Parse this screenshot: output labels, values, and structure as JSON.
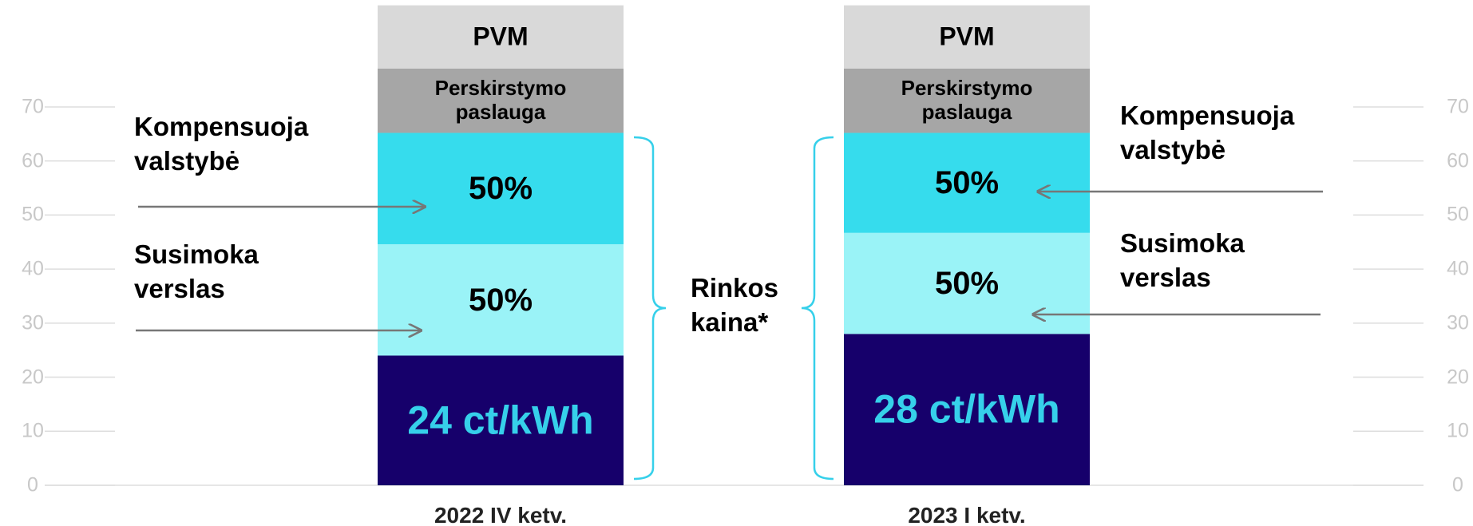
{
  "chart_data": {
    "type": "stacked_bar",
    "categories": [
      "2022 IV ketv.",
      "2023 I ketv."
    ],
    "series": [
      {
        "color": "#16006b",
        "values": [
          24,
          28
        ],
        "value_labels": [
          "24 ct/kWh",
          "28 ct/kWh"
        ],
        "label_color": "#36d0ea"
      },
      {
        "color": "#9af3f7",
        "values": [
          20.6,
          18.7
        ],
        "labels": [
          "50%",
          "50%"
        ]
      },
      {
        "color": "#36dced",
        "values": [
          20.6,
          18.5
        ],
        "labels": [
          "50%",
          "50%"
        ]
      },
      {
        "name": "Perskirstymo paslauga",
        "color": "#a6a6a6",
        "values": [
          11.9,
          11.9
        ]
      },
      {
        "name": "PVM",
        "color": "#d9d9d9",
        "values": [
          11.7,
          11.7
        ]
      }
    ],
    "annotations": [
      "Kompensuoja valstybė",
      "Susimoka verslas",
      "Rinkos kaina*",
      "Kompensuoja valstybė",
      "Susimoka verslas"
    ],
    "ylim": [
      0,
      89
    ],
    "yticks": [
      0,
      10,
      20,
      30,
      40,
      50,
      60,
      70
    ],
    "grid": true
  }
}
